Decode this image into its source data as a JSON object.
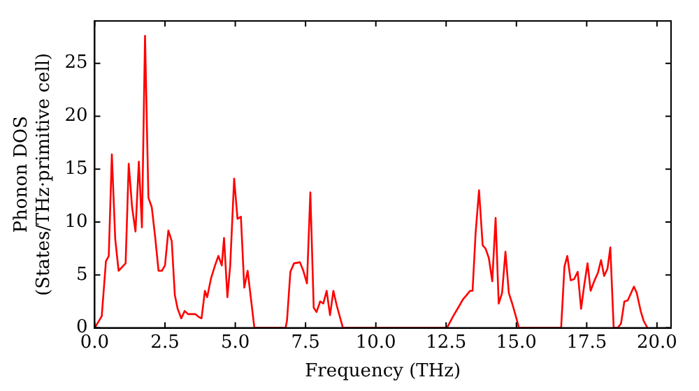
{
  "chart_data": {
    "type": "line",
    "xlabel": "Frequency (THz)",
    "ylabel": "Phonon DOS\n(States/THz·primitive cell)",
    "xlim": [
      0,
      20.5
    ],
    "ylim": [
      0,
      29
    ],
    "xticks": [
      {
        "value": 0,
        "label": "0.0"
      },
      {
        "value": 2.5,
        "label": "2.5"
      },
      {
        "value": 5,
        "label": "5.0"
      },
      {
        "value": 7.5,
        "label": "7.5"
      },
      {
        "value": 10,
        "label": "10.0"
      },
      {
        "value": 12.5,
        "label": "12.5"
      },
      {
        "value": 15,
        "label": "15.0"
      },
      {
        "value": 17.5,
        "label": "17.5"
      },
      {
        "value": 20,
        "label": "20.0"
      }
    ],
    "yticks": [
      0,
      5,
      10,
      15,
      20,
      25
    ],
    "grid": false,
    "legend": false,
    "marker": "none",
    "line_style": "solid",
    "series": [
      {
        "color": "#ff0000",
        "x": [
          0,
          0.25,
          0.4,
          0.5,
          0.61,
          0.73,
          0.85,
          1.1,
          1.21,
          1.33,
          1.45,
          1.57,
          1.68,
          1.79,
          1.91,
          2.03,
          2.15,
          2.27,
          2.39,
          2.5,
          2.62,
          2.74,
          2.85,
          2.95,
          3.08,
          3.2,
          3.32,
          3.58,
          3.72,
          3.8,
          3.92,
          4.0,
          4.14,
          4.28,
          4.4,
          4.52,
          4.6,
          4.72,
          4.82,
          4.96,
          5.08,
          5.2,
          5.32,
          5.44,
          5.68,
          6.79,
          6.84,
          6.96,
          7.09,
          7.3,
          7.42,
          7.55,
          7.67,
          7.79,
          7.89,
          8.02,
          8.13,
          8.25,
          8.37,
          8.49,
          8.61,
          8.83,
          12.53,
          12.75,
          12.95,
          13.1,
          13.23,
          13.35,
          13.44,
          13.55,
          13.67,
          13.8,
          13.9,
          14.02,
          14.14,
          14.26,
          14.37,
          14.49,
          14.61,
          14.73,
          14.85,
          15.0,
          15.09,
          16.59,
          16.71,
          16.81,
          16.93,
          17.05,
          17.18,
          17.3,
          17.41,
          17.53,
          17.64,
          17.78,
          17.9,
          18.01,
          18.12,
          18.24,
          18.34,
          18.46,
          18.6,
          18.72,
          18.84,
          18.96,
          19.08,
          19.18,
          19.28,
          19.42,
          19.52,
          19.66
        ],
        "values": [
          0,
          1.1,
          6.3,
          6.8,
          16.4,
          8.4,
          5.4,
          6.1,
          15.5,
          11.4,
          9.1,
          15.7,
          9.5,
          27.6,
          12.3,
          11.4,
          8.6,
          5.4,
          5.4,
          5.9,
          9.2,
          8.2,
          3.1,
          1.8,
          0.9,
          1.6,
          1.3,
          1.3,
          1.0,
          0.9,
          3.5,
          2.9,
          4.7,
          5.9,
          6.8,
          5.9,
          8.5,
          2.9,
          5.9,
          14.1,
          10.3,
          10.5,
          3.8,
          5.4,
          0,
          0,
          0.7,
          5.3,
          6.1,
          6.2,
          5.4,
          4.2,
          12.8,
          1.9,
          1.5,
          2.5,
          2.3,
          3.5,
          1.2,
          3.5,
          2.1,
          0,
          0,
          1.1,
          2.0,
          2.7,
          3.1,
          3.5,
          3.5,
          9.0,
          13.0,
          7.8,
          7.5,
          6.6,
          4.4,
          10.4,
          2.3,
          3.3,
          7.2,
          3.3,
          2.3,
          0.9,
          0,
          0,
          5.8,
          6.8,
          4.5,
          4.6,
          5.3,
          1.8,
          4.0,
          6.1,
          3.5,
          4.5,
          5.2,
          6.4,
          4.9,
          5.6,
          7.6,
          0,
          0,
          0.4,
          2.5,
          2.6,
          3.3,
          3.9,
          3.3,
          1.6,
          0.7,
          0
        ]
      }
    ]
  }
}
